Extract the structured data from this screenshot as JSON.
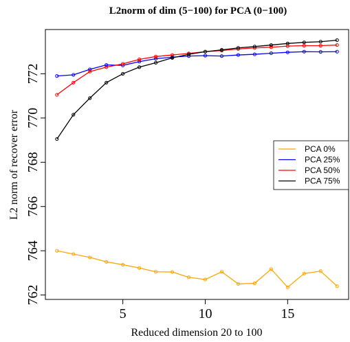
{
  "chart_data": {
    "type": "line",
    "title": "L2norm of dim (5−100) for PCA (0−100)",
    "xlabel": "Reduced dimension 20 to 100",
    "ylabel": "L2 norm of recover error",
    "xlim": [
      0.3,
      18.7
    ],
    "ylim": [
      761.8,
      774.0
    ],
    "xticks": [
      5,
      10,
      15
    ],
    "yticks": [
      762,
      764,
      766,
      768,
      770,
      772
    ],
    "grid": false,
    "legend_position": "right",
    "x": [
      1,
      2,
      3,
      4,
      5,
      6,
      7,
      8,
      9,
      10,
      11,
      12,
      13,
      14,
      15,
      16,
      17,
      18
    ],
    "series": [
      {
        "name": "PCA 0%",
        "color": "#FFA500",
        "values": [
          764.0,
          763.85,
          763.7,
          763.5,
          763.37,
          763.22,
          763.05,
          763.04,
          762.8,
          762.7,
          763.05,
          762.5,
          762.53,
          763.17,
          762.35,
          762.97,
          763.08,
          762.4
        ]
      },
      {
        "name": "PCA 25%",
        "color": "#0000FF",
        "values": [
          771.9,
          771.95,
          772.2,
          772.4,
          772.38,
          772.55,
          772.68,
          772.75,
          772.8,
          772.82,
          772.8,
          772.85,
          772.88,
          772.93,
          772.97,
          773.0,
          772.99,
          773.0
        ]
      },
      {
        "name": "PCA 50%",
        "color": "#FF0000",
        "values": [
          771.05,
          771.6,
          772.1,
          772.3,
          772.45,
          772.65,
          772.78,
          772.85,
          772.92,
          773.0,
          773.05,
          773.12,
          773.17,
          773.2,
          773.25,
          773.27,
          773.27,
          773.3
        ]
      },
      {
        "name": "PCA 75%",
        "color": "#000000",
        "values": [
          769.05,
          770.15,
          770.9,
          771.6,
          772.0,
          772.3,
          772.5,
          772.72,
          772.88,
          773.0,
          773.08,
          773.17,
          773.23,
          773.3,
          773.37,
          773.42,
          773.45,
          773.52
        ]
      }
    ]
  }
}
